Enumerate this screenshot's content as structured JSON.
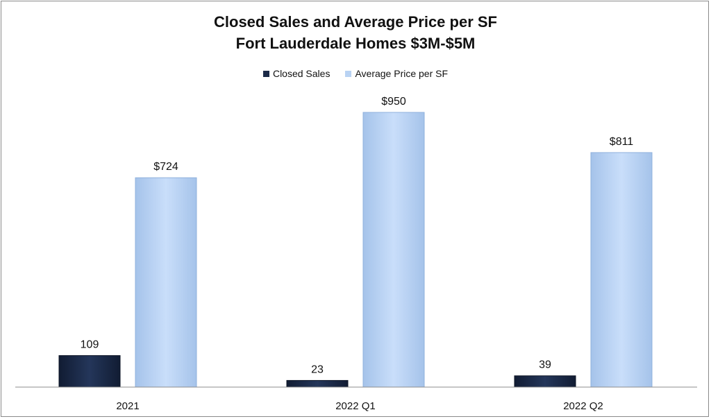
{
  "chart_data": {
    "type": "bar",
    "title": "Closed Sales and Average Price per SF",
    "subtitle": "Fort Lauderdale Homes $3M-$5M",
    "categories": [
      "2021",
      "2022 Q1",
      "2022 Q2"
    ],
    "series": [
      {
        "name": "Closed Sales",
        "values": [
          109,
          23,
          39
        ],
        "labels": [
          "109",
          "23",
          "39"
        ],
        "color": "#1b2a47"
      },
      {
        "name": "Average Price per SF",
        "values": [
          724,
          950,
          811
        ],
        "labels": [
          "$724",
          "$950",
          "$811"
        ],
        "color": "#b9d3f3"
      }
    ],
    "ylim": [
      0,
      1000
    ],
    "grid": false,
    "legend_position": "top"
  }
}
